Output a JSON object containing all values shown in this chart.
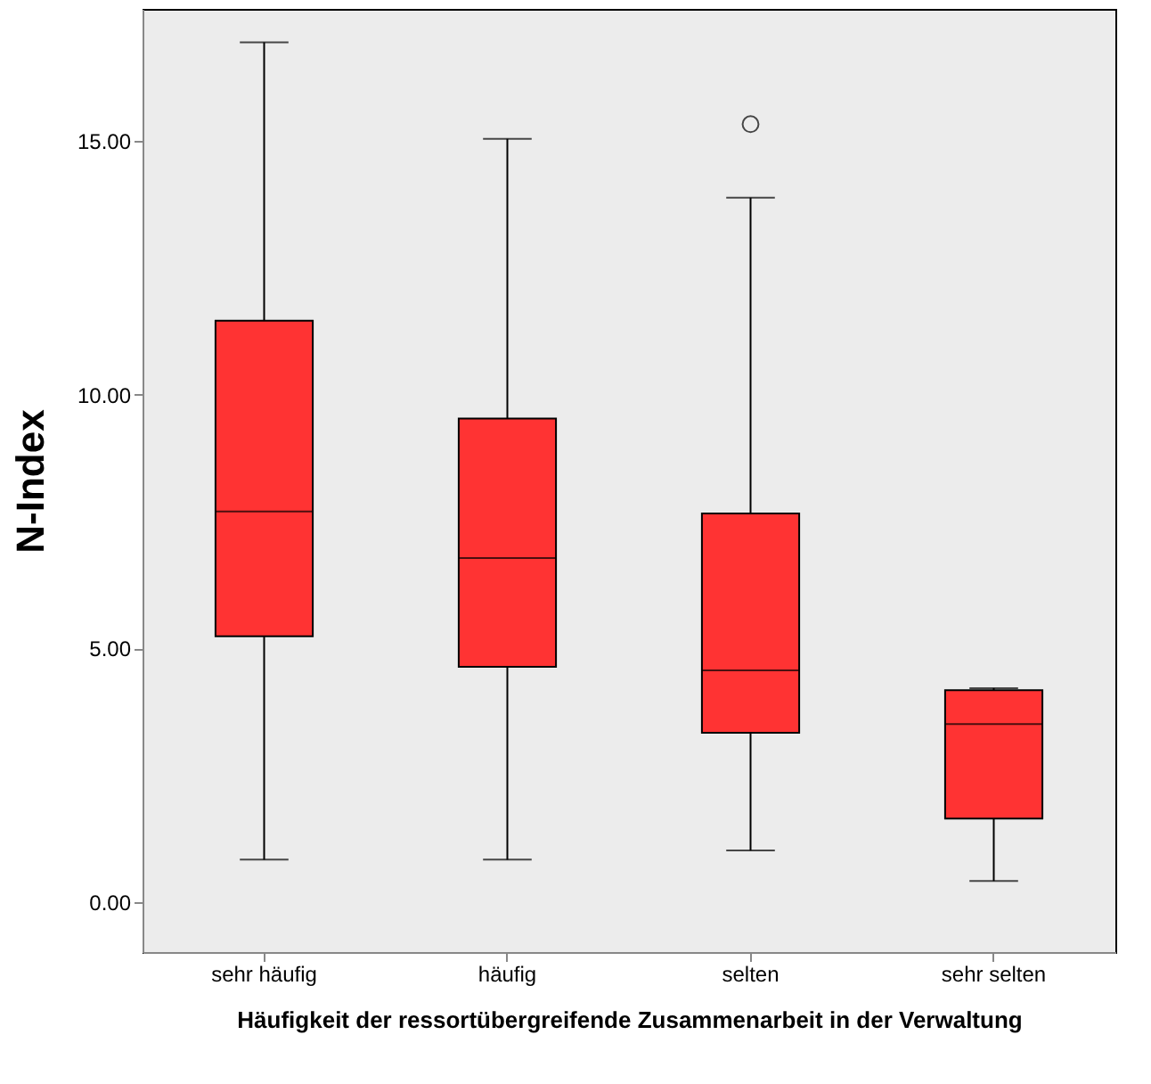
{
  "chart_data": {
    "type": "box",
    "xlabel": "Häufigkeit der ressortübergreifende Zusammenarbeit in der Verwaltung",
    "ylabel": "N-Index",
    "categories": [
      "sehr häufig",
      "häufig",
      "selten",
      "sehr selten"
    ],
    "color": "#ff3333",
    "boxes": [
      {
        "low": 0.84,
        "q1": 5.24,
        "median": 7.7,
        "q3": 11.46,
        "high": 16.94
      },
      {
        "low": 0.84,
        "q1": 4.64,
        "median": 6.78,
        "q3": 9.53,
        "high": 15.04
      },
      {
        "low": 1.02,
        "q1": 3.34,
        "median": 4.57,
        "q3": 7.66,
        "high": 13.88,
        "outliers": [
          15.33
        ]
      },
      {
        "low": 0.42,
        "q1": 1.65,
        "median": 3.51,
        "q3": 4.18,
        "high": 4.22
      }
    ],
    "ylim": [
      -0.98,
      17.6
    ],
    "yticks": [
      {
        "value": 0,
        "label": "0.00"
      },
      {
        "value": 5,
        "label": "5.00"
      },
      {
        "value": 10,
        "label": "10.00"
      },
      {
        "value": 15,
        "label": "15.00"
      }
    ],
    "grid": false
  }
}
